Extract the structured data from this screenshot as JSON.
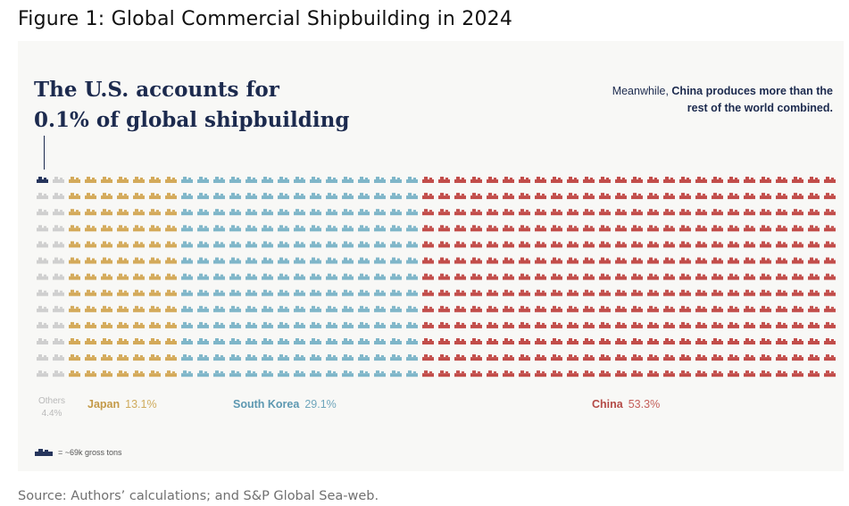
{
  "figure_title": "Figure 1: Global Commercial Shipbuilding in 2024",
  "headline": {
    "line1": "The U.S. accounts for",
    "line2": "0.1% of global shipbuilding"
  },
  "callout": {
    "part1": "Meanwhile,",
    "part2": "China produces more than the rest of the world combined."
  },
  "colors": {
    "us": "#26355c",
    "others": "#cfcfcf",
    "japan": "#d4aa5a",
    "south_korea": "#7fb6c9",
    "china": "#c24d4a"
  },
  "icon": "ship-icon",
  "key_text": "= ~69k gross tons",
  "source": "Source: Authors’ calculations; and S&P Global Sea-web.",
  "chart_data": {
    "type": "waffle",
    "unit": "~69k gross tons",
    "series": [
      {
        "name": "U.S.",
        "value_pct": 0.1,
        "columns": 0.05
      },
      {
        "name": "Others",
        "label": "Others",
        "pct_label": "4.4%",
        "value_pct": 4.4,
        "columns": 2
      },
      {
        "name": "Japan",
        "label": "Japan",
        "pct_label": "13.1%",
        "value_pct": 13.1,
        "columns": 7
      },
      {
        "name": "South Korea",
        "label": "South Korea",
        "pct_label": "29.1%",
        "value_pct": 29.1,
        "columns": 15
      },
      {
        "name": "China",
        "label": "China",
        "pct_label": "53.3%",
        "value_pct": 53.3,
        "columns": 26
      }
    ],
    "grid": {
      "columns": 50,
      "rows": 13
    }
  }
}
